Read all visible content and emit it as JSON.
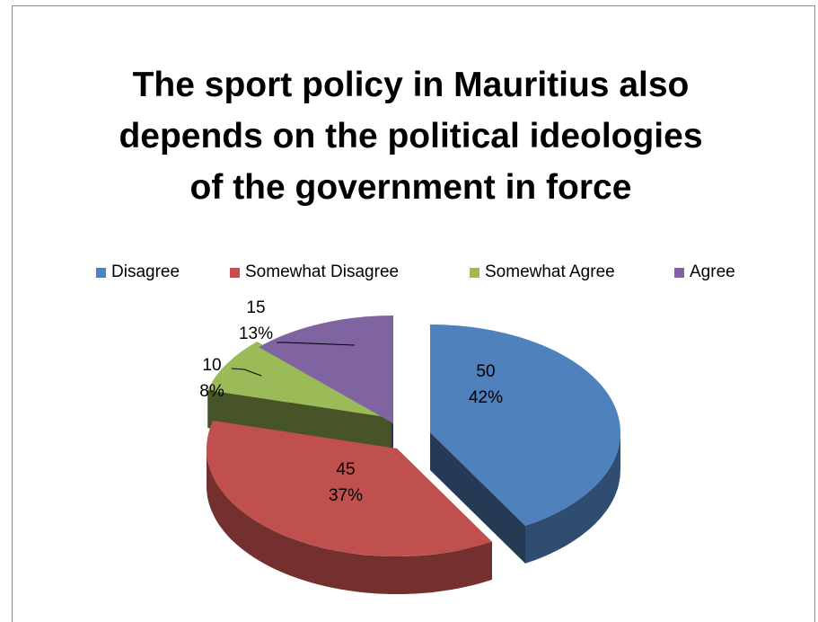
{
  "chart_data": {
    "type": "pie",
    "title_lines": [
      "The sport policy in Mauritius also",
      "depends on the political ideologies",
      "of the government in force"
    ],
    "categories": [
      "Disagree",
      "Somewhat Disagree",
      "Somewhat Agree",
      "Agree"
    ],
    "values": [
      50,
      45,
      10,
      15
    ],
    "percent_labels": [
      "42%",
      "37%",
      "8%",
      "13%"
    ],
    "value_labels": [
      "50",
      "45",
      "10",
      "15"
    ],
    "colors": [
      "#4f81bd",
      "#c0504d",
      "#9bbb59",
      "#8064a2"
    ],
    "legend_position": "top",
    "style": "3d-exploded"
  }
}
